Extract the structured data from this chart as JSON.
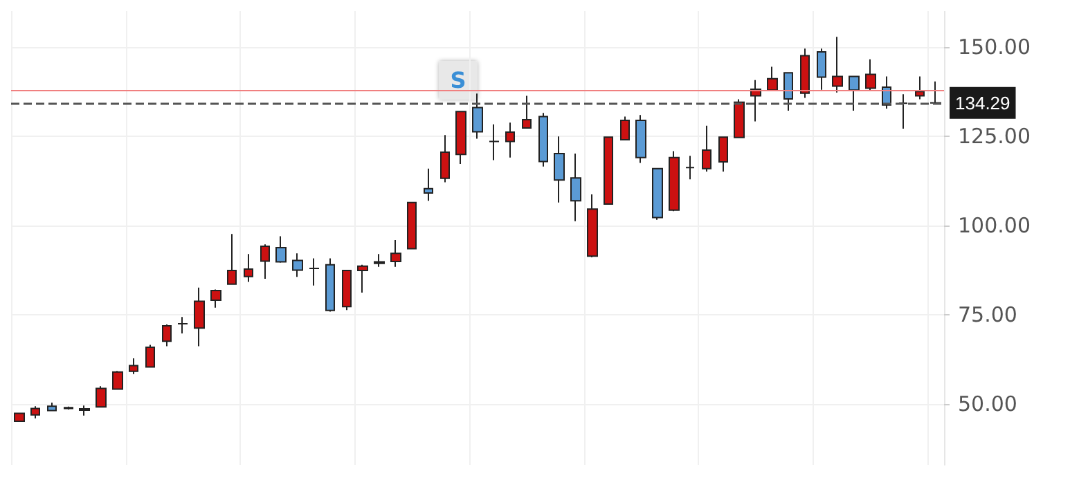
{
  "chart_data": {
    "type": "candlestick",
    "categories": [
      null,
      null,
      null,
      null,
      null,
      null,
      null,
      null,
      null,
      null,
      null,
      null,
      null,
      null,
      null,
      null,
      null,
      null,
      null,
      null,
      null,
      null,
      null,
      null,
      null,
      null,
      null,
      null,
      null,
      null,
      null,
      null,
      null,
      null,
      null,
      null,
      null,
      null,
      null,
      null,
      null,
      null,
      null,
      null,
      null,
      null,
      null,
      null,
      null,
      null,
      null,
      null,
      null,
      null,
      null,
      null,
      null
    ],
    "ohlc": [
      [
        45.2,
        47.6,
        45.0,
        47.4
      ],
      [
        47.0,
        49.4,
        46.0,
        48.8
      ],
      [
        49.4,
        50.4,
        48.0,
        48.2
      ],
      [
        48.8,
        49.3,
        48.5,
        49.0
      ],
      [
        48.3,
        49.6,
        46.8,
        48.7
      ],
      [
        49.2,
        55.0,
        49.2,
        54.4
      ],
      [
        54.2,
        59.3,
        54.0,
        59.0
      ],
      [
        59.2,
        62.8,
        58.4,
        60.8
      ],
      [
        60.4,
        66.6,
        60.4,
        65.9
      ],
      [
        67.6,
        72.3,
        66.2,
        71.9
      ],
      [
        72.5,
        74.4,
        69.8,
        72.5
      ],
      [
        71.3,
        82.6,
        66.2,
        78.8
      ],
      [
        79.1,
        82.1,
        77.0,
        81.8
      ],
      [
        83.6,
        97.6,
        83.6,
        87.4
      ],
      [
        85.7,
        92.0,
        84.2,
        87.8
      ],
      [
        90.0,
        94.7,
        85.1,
        94.2
      ],
      [
        93.8,
        97.0,
        89.6,
        89.8
      ],
      [
        90.2,
        92.2,
        85.6,
        87.5
      ],
      [
        88.0,
        90.8,
        83.2,
        88.0
      ],
      [
        89.0,
        90.8,
        75.9,
        76.2
      ],
      [
        77.3,
        87.6,
        76.3,
        87.4
      ],
      [
        87.4,
        89.0,
        81.2,
        88.6
      ],
      [
        89.4,
        92.0,
        88.4,
        89.8
      ],
      [
        89.9,
        95.9,
        88.4,
        92.2
      ],
      [
        93.5,
        106.4,
        93.5,
        106.4
      ],
      [
        110.3,
        115.9,
        106.9,
        109.1
      ],
      [
        113.2,
        125.3,
        112.1,
        120.5
      ],
      [
        119.9,
        132.0,
        117.2,
        131.9
      ],
      [
        133.0,
        136.9,
        124.3,
        126.2
      ],
      [
        123.5,
        128.3,
        118.3,
        123.5
      ],
      [
        123.5,
        128.8,
        119.0,
        126.1
      ],
      [
        127.3,
        136.3,
        127.3,
        129.6
      ],
      [
        130.5,
        131.5,
        116.5,
        117.9
      ],
      [
        120.1,
        124.9,
        106.4,
        112.7
      ],
      [
        113.3,
        120.1,
        101.2,
        106.9
      ],
      [
        91.4,
        108.7,
        91.1,
        104.6
      ],
      [
        106.0,
        124.7,
        106.0,
        124.7
      ],
      [
        124.0,
        130.5,
        124.0,
        129.4
      ],
      [
        129.4,
        130.9,
        117.5,
        119.0
      ],
      [
        115.9,
        116.0,
        101.6,
        102.2
      ],
      [
        104.3,
        120.8,
        104.0,
        119.0
      ],
      [
        116.2,
        119.5,
        112.9,
        116.2
      ],
      [
        115.9,
        127.9,
        115.1,
        121.1
      ],
      [
        117.8,
        124.9,
        115.1,
        124.7
      ],
      [
        124.6,
        135.3,
        124.6,
        134.5
      ],
      [
        136.3,
        140.7,
        129.1,
        138.1
      ],
      [
        137.9,
        144.4,
        137.9,
        141.1
      ],
      [
        142.7,
        142.7,
        132.1,
        135.4
      ],
      [
        137.0,
        149.5,
        135.7,
        147.5
      ],
      [
        148.6,
        149.5,
        138.0,
        141.5
      ],
      [
        139.0,
        152.8,
        137.2,
        141.7
      ],
      [
        141.7,
        141.7,
        132.1,
        137.9
      ],
      [
        138.4,
        146.5,
        137.9,
        142.3
      ],
      [
        138.7,
        141.7,
        132.7,
        133.7
      ],
      [
        134.2,
        136.7,
        127.1,
        134.2
      ],
      [
        136.3,
        141.7,
        135.3,
        137.5
      ],
      [
        134.3,
        140.3,
        134.2,
        134.29
      ]
    ],
    "colors": [
      "#cc1111",
      "#cc1111",
      "#5b9bd5",
      "#cc1111",
      "#222222",
      "#cc1111",
      "#cc1111",
      "#cc1111",
      "#cc1111",
      "#cc1111",
      "#222222",
      "#cc1111",
      "#cc1111",
      "#cc1111",
      "#cc1111",
      "#cc1111",
      "#5b9bd5",
      "#5b9bd5",
      "#222222",
      "#5b9bd5",
      "#cc1111",
      "#cc1111",
      "#222222",
      "#cc1111",
      "#cc1111",
      "#5b9bd5",
      "#cc1111",
      "#cc1111",
      "#5b9bd5",
      "#222222",
      "#cc1111",
      "#cc1111",
      "#5b9bd5",
      "#5b9bd5",
      "#5b9bd5",
      "#cc1111",
      "#cc1111",
      "#cc1111",
      "#5b9bd5",
      "#5b9bd5",
      "#cc1111",
      "#222222",
      "#cc1111",
      "#cc1111",
      "#cc1111",
      "#cc1111",
      "#cc1111",
      "#5b9bd5",
      "#cc1111",
      "#5b9bd5",
      "#cc1111",
      "#5b9bd5",
      "#cc1111",
      "#5b9bd5",
      "#222222",
      "#cc1111",
      "#5b9bd5"
    ],
    "ylim": [
      33,
      160
    ],
    "yticks": [
      {
        "value": 50,
        "label": "50.00"
      },
      {
        "value": 75,
        "label": "75.00"
      },
      {
        "value": 100,
        "label": "100.00"
      },
      {
        "value": 125,
        "label": "125.00"
      },
      {
        "value": 150,
        "label": "150.00"
      }
    ],
    "grid": true,
    "ref_lines": [
      {
        "axis": "y",
        "value": 134.29,
        "label": "134.29",
        "color": "#555555",
        "line_style": "dashed"
      },
      {
        "axis": "y",
        "value": 137.7,
        "label": null,
        "color": "#f08080",
        "line_style": "solid"
      }
    ],
    "annotations": [
      "S"
    ]
  }
}
